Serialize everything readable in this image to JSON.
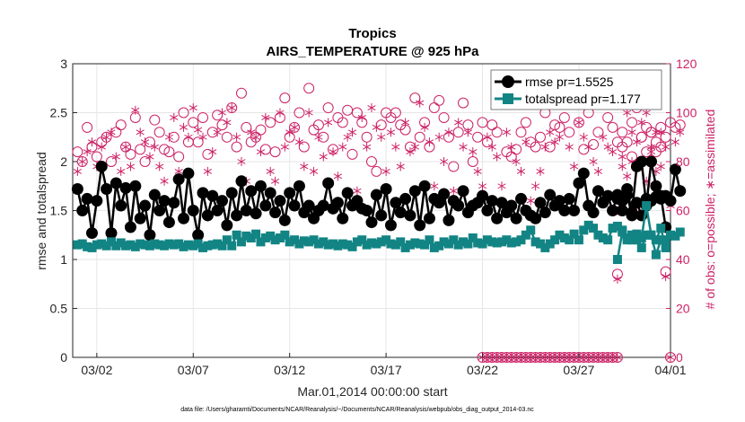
{
  "chart_data": {
    "type": "line",
    "title": "Tropics",
    "subtitle": "AIRS_TEMPERATURE @ 925 hPa",
    "xlabel": "Mar.01,2014 00:00:00 start",
    "ylabel": "rmse and totalspread",
    "ylabel_right": "# of obs: o=possible; ∗=assimilated",
    "footnote": "data file: /Users/gharamti/Documents/NCAR/Reanalysis/~/Documents/NCAR/Reanalysis/webpub/obs_diag_output_2014-03.nc",
    "xlim": [
      0.25,
      31.25
    ],
    "ylim": [
      0,
      3
    ],
    "ylim_right": [
      0,
      120
    ],
    "x_ticks": [
      {
        "value": 1.5,
        "label": "03/02"
      },
      {
        "value": 6.5,
        "label": "03/07"
      },
      {
        "value": 11.5,
        "label": "03/12"
      },
      {
        "value": 16.5,
        "label": "03/17"
      },
      {
        "value": 21.5,
        "label": "03/22"
      },
      {
        "value": 26.5,
        "label": "03/27"
      },
      {
        "value": 31.5,
        "label": "04/01"
      }
    ],
    "y_ticks": [
      "0",
      "0.5",
      "1",
      "1.5",
      "2",
      "2.5",
      "3"
    ],
    "y_ticks_right": [
      "0",
      "20",
      "40",
      "60",
      "80",
      "100",
      "120"
    ],
    "legend": {
      "placement": "top-right",
      "entries": [
        "rmse pr=1.5525",
        "totalspread pr=1.177"
      ]
    },
    "colors": {
      "rmse": "#000000",
      "spread": "#128484",
      "obs": "#cc2266"
    },
    "segments": [
      {
        "x_start": 0.5,
        "step": 0.25,
        "rmse": [
          1.72,
          1.5,
          1.62,
          1.27,
          1.6,
          1.95,
          1.72,
          1.27,
          1.78,
          1.55,
          1.73,
          1.33,
          1.75,
          1.42,
          1.55,
          1.25,
          1.66,
          1.5,
          1.6,
          1.38,
          1.58,
          1.82,
          1.42,
          1.88,
          1.5,
          1.25,
          1.68,
          1.45,
          1.65,
          1.5,
          1.6,
          1.35,
          1.68,
          1.45,
          1.8,
          1.5,
          1.7,
          1.47,
          1.75,
          1.55,
          1.68,
          1.48,
          1.6,
          1.4,
          1.68,
          1.55,
          1.75,
          1.48,
          1.55,
          1.42,
          1.5,
          1.55,
          1.78,
          1.52,
          1.58,
          1.42,
          1.68,
          1.55,
          1.6,
          1.52,
          1.5,
          1.38,
          1.66,
          1.45,
          1.72,
          1.35,
          1.58,
          1.48,
          1.62,
          1.45,
          1.7,
          1.35,
          1.75,
          1.42,
          1.62,
          1.58,
          1.67,
          1.4,
          1.6,
          1.55,
          1.7,
          1.48,
          1.55,
          1.58,
          1.65,
          1.5,
          1.6,
          1.42,
          1.58,
          1.48,
          1.55,
          1.42,
          1.62,
          1.5,
          1.45,
          1.42,
          1.58,
          1.48,
          1.66,
          1.55,
          1.6,
          1.5,
          1.62,
          1.5,
          1.78,
          1.88,
          1.55,
          1.48,
          1.7,
          1.58,
          1.65,
          1.5,
          1.66,
          1.5,
          1.66,
          1.45,
          1.58,
          1.45,
          1.62,
          1.6,
          1.64,
          1.65,
          1.33
        ],
        "spread": [
          1.15,
          1.16,
          1.13,
          1.12,
          1.15,
          1.16,
          1.14,
          1.18,
          1.14,
          1.17,
          1.14,
          1.15,
          1.13,
          1.16,
          1.15,
          1.14,
          1.16,
          1.15,
          1.14,
          1.16,
          1.15,
          1.16,
          1.13,
          1.15,
          1.14,
          1.16,
          1.12,
          1.14,
          1.15,
          1.16,
          1.14,
          1.2,
          1.14,
          1.25,
          1.18,
          1.24,
          1.22,
          1.26,
          1.18,
          1.22,
          1.24,
          1.2,
          1.22,
          1.25,
          1.18,
          1.2,
          1.16,
          1.19,
          1.18,
          1.2,
          1.16,
          1.18,
          1.15,
          1.16,
          1.14,
          1.16,
          1.15,
          1.13,
          1.18,
          1.2,
          1.15,
          1.17,
          1.16,
          1.18,
          1.2,
          1.16,
          1.15,
          1.18,
          1.12,
          1.15,
          1.17,
          1.16,
          1.15,
          1.2,
          1.12,
          1.14,
          1.18,
          1.16,
          1.2,
          1.15,
          1.18,
          1.16,
          1.22,
          1.17,
          1.16,
          1.2,
          1.18,
          1.17,
          1.18,
          1.2,
          1.17,
          1.18,
          1.2,
          1.25,
          1.3,
          1.18,
          1.16,
          1.12,
          1.16,
          1.2,
          1.25,
          1.22,
          1.2,
          1.26,
          1.2,
          1.3,
          1.35,
          1.32,
          1.25,
          1.22,
          1.2,
          1.32,
          1.34,
          1.3,
          1.2,
          1.25,
          1.2,
          1.22,
          1.55,
          1.25,
          1.2,
          1.32,
          1.12
        ],
        "obs_possible": [
          84,
          80,
          94,
          86,
          82,
          88,
          90,
          80,
          92,
          95,
          86,
          83,
          98,
          85,
          80,
          88,
          97,
          92,
          85,
          84,
          90,
          82,
          100,
          88,
          96,
          88,
          98,
          83,
          92,
          99,
          95,
          90,
          102,
          86,
          108,
          94,
          88,
          90,
          93,
          85,
          96,
          84,
          98,
          106,
          90,
          94,
          100,
          86,
          110,
          93,
          95,
          90,
          102,
          85,
          98,
          96,
          101,
          83,
          100,
          96,
          90,
          80,
          76,
          95,
          100,
          98,
          100,
          95,
          93,
          86,
          106,
          90,
          96,
          86,
          102,
          105,
          98,
          90,
          78,
          92,
          104,
          95,
          80,
          90,
          96,
          88,
          95,
          92,
          104,
          84,
          82,
          85,
          92,
          96,
          88,
          86,
          90,
          100,
          86,
          95,
          94,
          98,
          92,
          112,
          96,
          85,
          100,
          87,
          92,
          104,
          98,
          94,
          88,
          92,
          106,
          96,
          102,
          90,
          94,
          92,
          88,
          94,
          35
        ],
        "obs_assimilated": [
          76,
          80,
          84,
          88,
          78,
          86,
          90,
          92,
          82,
          76,
          86,
          78,
          101,
          92,
          88,
          82,
          86,
          78,
          72,
          90,
          98,
          76,
          94,
          90,
          102,
          93,
          90,
          76,
          84,
          92,
          100,
          96,
          102,
          90,
          80,
          72,
          92,
          90,
          84,
          98,
          76,
          72,
          100,
          86,
          92,
          94,
          88,
          78,
          100,
          76,
          90,
          82,
          96,
          84,
          74,
          86,
          90,
          92,
          68,
          98,
          86,
          102,
          94,
          90,
          76,
          92,
          86,
          78,
          96,
          84,
          86,
          104,
          94,
          88,
          70,
          90,
          80,
          92,
          68,
          96,
          86,
          92,
          84,
          76,
          70,
          90,
          86,
          82,
          70,
          92,
          86,
          80,
          76,
          88,
          64,
          70,
          76,
          86,
          92,
          88,
          90,
          104,
          86,
          78,
          96,
          90,
          86,
          80,
          76,
          90,
          86,
          84,
          60,
          82,
          100,
          92,
          88,
          96,
          100,
          86,
          92,
          92,
          33
        ]
      },
      {
        "x_start": 21.5,
        "step": 0.25,
        "obs_possible": [
          0,
          0,
          0,
          0,
          0,
          0,
          0,
          0,
          0,
          0,
          0,
          0,
          0,
          0,
          0,
          0,
          0,
          0,
          0,
          0,
          0,
          0,
          0,
          0,
          0,
          0,
          0,
          0,
          0
        ],
        "obs_assimilated": [
          0,
          0,
          0,
          0,
          0,
          0,
          0,
          0,
          0,
          0,
          0,
          0,
          0,
          0,
          0,
          0,
          0,
          0,
          0,
          0,
          0,
          0,
          0,
          0,
          0,
          0,
          0,
          0,
          0
        ]
      },
      {
        "x_start": 28.5,
        "step": 0.25,
        "rmse": [
          1.62,
          1.6,
          1.72,
          1.48,
          1.95,
          2.0,
          1.55,
          2.0,
          1.75,
          1.62,
          1.65,
          1.6,
          1.92,
          1.7
        ],
        "spread": [
          1.0,
          1.28,
          1.22,
          1.2,
          1.26,
          1.12,
          1.25,
          1.25,
          1.05,
          1.2,
          1.2,
          1.25,
          1.24,
          1.28
        ],
        "obs_possible": [
          34,
          86,
          88,
          82,
          78,
          90,
          84,
          92,
          84,
          86,
          90,
          96,
          94,
          95
        ],
        "obs_assimilated": [
          32,
          78,
          74,
          80,
          62,
          80,
          72,
          84,
          76,
          78,
          86,
          62,
          88,
          92
        ]
      },
      {
        "x_start": 31.25,
        "step": 0.25,
        "obs_possible": [
          0
        ],
        "obs_assimilated": [
          0
        ]
      }
    ]
  }
}
